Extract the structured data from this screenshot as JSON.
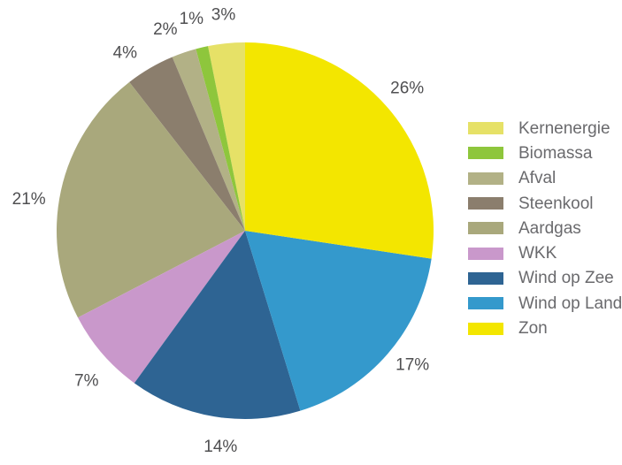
{
  "chart_data": {
    "type": "pie",
    "title": "",
    "unit": "%",
    "slices": [
      {
        "label": "Kernenergie",
        "value": 3,
        "pct_label": "3%",
        "color": "#E6E167",
        "label_offset": [
          0,
          2
        ]
      },
      {
        "label": "Biomassa",
        "value": 1,
        "pct_label": "1%",
        "color": "#8EC63C",
        "label_offset": [
          -4,
          1
        ]
      },
      {
        "label": "Afval",
        "value": 2,
        "pct_label": "2%",
        "color": "#B2B186",
        "label_offset": [
          -10,
          6
        ]
      },
      {
        "label": "Steenkool",
        "value": 4,
        "pct_label": "4%",
        "color": "#8B7E6D",
        "label_offset": [
          -11,
          12
        ]
      },
      {
        "label": "Aardgas",
        "value": 21,
        "pct_label": "21%",
        "color": "#A9A87C",
        "label_offset": [
          -3,
          17
        ]
      },
      {
        "label": "WKK",
        "value": 7,
        "pct_label": "7%",
        "color": "#C998CB",
        "label_offset": [
          8,
          9
        ]
      },
      {
        "label": "Wind op Zee",
        "value": 14,
        "pct_label": "14%",
        "color": "#2E6493",
        "label_offset": [
          13,
          1
        ]
      },
      {
        "label": "Wind op Land",
        "value": 17,
        "pct_label": "17%",
        "color": "#3499CC",
        "label_offset": [
          2,
          -9
        ]
      },
      {
        "label": "Zon",
        "value": 26,
        "pct_label": "26%",
        "color": "#F3E600",
        "label_offset": [
          -4,
          0
        ]
      }
    ],
    "layout": {
      "center": [
        277,
        261
      ],
      "radius": 213,
      "label_radius": 247,
      "start_angle_deg": 0,
      "direction": "counterclockwise",
      "legend_position": "right",
      "grid": false
    },
    "colors": {
      "pct_label_text": "#4f4f51",
      "legend_text": "#6a6a6d",
      "background": "#ffffff"
    }
  }
}
